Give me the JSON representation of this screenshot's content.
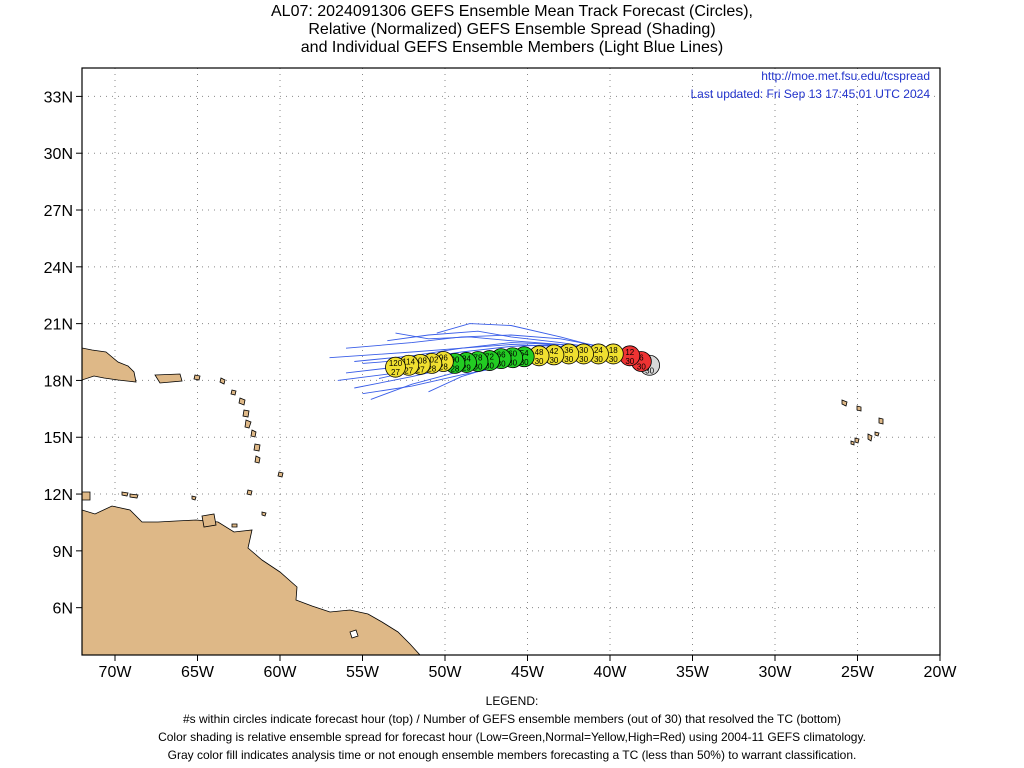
{
  "title": {
    "line1": "AL07: 2024091306 GEFS Ensemble Mean Track Forecast (Circles),",
    "line2": "Relative (Normalized) GEFS Ensemble Spread (Shading)",
    "line3": "and Individual GEFS Ensemble Members (Light Blue Lines)"
  },
  "header_links": {
    "url": "http://moe.met.fsu.edu/tcspread",
    "updated": "Last updated: Fri Sep 13 17:45:01 UTC 2024"
  },
  "axes": {
    "lon_range": [
      -72,
      -20
    ],
    "lat_range": [
      3.5,
      34.5
    ],
    "x_ticks": [
      {
        "lon": -70,
        "label": "70W"
      },
      {
        "lon": -65,
        "label": "65W"
      },
      {
        "lon": -60,
        "label": "60W"
      },
      {
        "lon": -55,
        "label": "55W"
      },
      {
        "lon": -50,
        "label": "50W"
      },
      {
        "lon": -45,
        "label": "45W"
      },
      {
        "lon": -40,
        "label": "40W"
      },
      {
        "lon": -35,
        "label": "35W"
      },
      {
        "lon": -30,
        "label": "30W"
      },
      {
        "lon": -25,
        "label": "25W"
      },
      {
        "lon": -20,
        "label": "20W"
      }
    ],
    "y_ticks": [
      {
        "lat": 6,
        "label": "6N"
      },
      {
        "lat": 9,
        "label": "9N"
      },
      {
        "lat": 12,
        "label": "12N"
      },
      {
        "lat": 15,
        "label": "15N"
      },
      {
        "lat": 18,
        "label": "18N"
      },
      {
        "lat": 21,
        "label": "21N"
      },
      {
        "lat": 24,
        "label": "24N"
      },
      {
        "lat": 27,
        "label": "27N"
      },
      {
        "lat": 30,
        "label": "30N"
      },
      {
        "lat": 33,
        "label": "33N"
      }
    ],
    "grid": true
  },
  "colors": {
    "land": "#deb887",
    "member_track": "#3a5ee8",
    "low_spread": "#22cc22",
    "normal_spread": "#f0e030",
    "high_spread": "#ee3333",
    "unclassified": "#d8d8d8",
    "link_text": "#2233cc"
  },
  "track": [
    {
      "hour": "0",
      "members": "30",
      "lon": -37.6,
      "lat": 18.8,
      "class": "gray"
    },
    {
      "hour": "6",
      "members": "30",
      "lon": -38.1,
      "lat": 19.0,
      "class": "red"
    },
    {
      "hour": "12",
      "members": "30",
      "lon": -38.8,
      "lat": 19.3,
      "class": "red"
    },
    {
      "hour": "18",
      "members": "30",
      "lon": -39.8,
      "lat": 19.4,
      "class": "yellow"
    },
    {
      "hour": "24",
      "members": "30",
      "lon": -40.7,
      "lat": 19.4,
      "class": "yellow"
    },
    {
      "hour": "30",
      "members": "30",
      "lon": -41.6,
      "lat": 19.4,
      "class": "yellow"
    },
    {
      "hour": "36",
      "members": "30",
      "lon": -42.5,
      "lat": 19.4,
      "class": "yellow"
    },
    {
      "hour": "42",
      "members": "30",
      "lon": -43.4,
      "lat": 19.35,
      "class": "yellow"
    },
    {
      "hour": "48",
      "members": "30",
      "lon": -44.3,
      "lat": 19.3,
      "class": "yellow"
    },
    {
      "hour": "54",
      "members": "30",
      "lon": -45.2,
      "lat": 19.25,
      "class": "green"
    },
    {
      "hour": "60",
      "members": "30",
      "lon": -45.9,
      "lat": 19.2,
      "class": "green"
    },
    {
      "hour": "66",
      "members": "30",
      "lon": -46.6,
      "lat": 19.15,
      "class": "green"
    },
    {
      "hour": "72",
      "members": "30",
      "lon": -47.3,
      "lat": 19.05,
      "class": "green"
    },
    {
      "hour": "78",
      "members": "30",
      "lon": -48.0,
      "lat": 19.0,
      "class": "green"
    },
    {
      "hour": "84",
      "members": "29",
      "lon": -48.7,
      "lat": 18.95,
      "class": "green"
    },
    {
      "hour": "90",
      "members": "28",
      "lon": -49.4,
      "lat": 18.9,
      "class": "green"
    },
    {
      "hour": "96",
      "members": "28",
      "lon": -50.1,
      "lat": 19.0,
      "class": "yellow"
    },
    {
      "hour": "102",
      "members": "28",
      "lon": -50.8,
      "lat": 18.9,
      "class": "yellow"
    },
    {
      "hour": "108",
      "members": "27",
      "lon": -51.5,
      "lat": 18.85,
      "class": "yellow"
    },
    {
      "hour": "114",
      "members": "27",
      "lon": -52.2,
      "lat": 18.8,
      "class": "yellow"
    },
    {
      "hour": "120",
      "members": "27",
      "lon": -53.0,
      "lat": 18.7,
      "class": "yellow"
    }
  ],
  "members": [
    [
      [
        -37.8,
        18.9
      ],
      [
        -40,
        19.6
      ],
      [
        -43,
        19.9
      ],
      [
        -46,
        20.0
      ],
      [
        -49,
        19.7
      ],
      [
        -52,
        19.3
      ],
      [
        -55.5,
        19.0
      ]
    ],
    [
      [
        -37.8,
        18.9
      ],
      [
        -40,
        19.7
      ],
      [
        -43,
        20.2
      ],
      [
        -46,
        20.4
      ],
      [
        -49,
        20.3
      ],
      [
        -52,
        20.0
      ],
      [
        -56.0,
        19.7
      ]
    ],
    [
      [
        -37.8,
        18.9
      ],
      [
        -40,
        19.6
      ],
      [
        -43,
        20.3
      ],
      [
        -46,
        20.9
      ],
      [
        -48.5,
        21.0
      ],
      [
        -50.5,
        20.5
      ]
    ],
    [
      [
        -37.8,
        18.9
      ],
      [
        -40,
        19.5
      ],
      [
        -43,
        19.7
      ],
      [
        -46,
        19.6
      ],
      [
        -49,
        19.3
      ],
      [
        -52,
        18.8
      ],
      [
        -56.0,
        18.4
      ]
    ],
    [
      [
        -37.8,
        18.9
      ],
      [
        -40,
        19.4
      ],
      [
        -43,
        19.5
      ],
      [
        -46,
        19.3
      ],
      [
        -49,
        18.8
      ],
      [
        -52,
        18.2
      ],
      [
        -55.5,
        17.6
      ]
    ],
    [
      [
        -37.8,
        18.9
      ],
      [
        -40,
        19.3
      ],
      [
        -43,
        19.3
      ],
      [
        -46,
        19.0
      ],
      [
        -49,
        18.5
      ],
      [
        -52,
        17.8
      ],
      [
        -54.5,
        17.0
      ]
    ],
    [
      [
        -37.8,
        18.9
      ],
      [
        -40,
        19.5
      ],
      [
        -43,
        19.8
      ],
      [
        -46,
        19.9
      ],
      [
        -49,
        19.7
      ],
      [
        -52,
        19.5
      ],
      [
        -57.0,
        19.2
      ]
    ],
    [
      [
        -37.8,
        18.9
      ],
      [
        -40,
        19.4
      ],
      [
        -43,
        19.4
      ],
      [
        -46,
        19.0
      ],
      [
        -49,
        18.2
      ],
      [
        -51,
        17.4
      ]
    ],
    [
      [
        -37.8,
        18.9
      ],
      [
        -40,
        19.6
      ],
      [
        -43,
        20.0
      ],
      [
        -46,
        20.3
      ],
      [
        -48,
        20.6
      ],
      [
        -51,
        20.4
      ],
      [
        -53.5,
        20.1
      ]
    ],
    [
      [
        -37.8,
        18.9
      ],
      [
        -40,
        19.5
      ],
      [
        -43,
        19.6
      ],
      [
        -46,
        19.4
      ],
      [
        -49,
        19.0
      ],
      [
        -52,
        18.5
      ],
      [
        -56.5,
        18.0
      ]
    ],
    [
      [
        -37.8,
        18.9
      ],
      [
        -40,
        19.3
      ],
      [
        -43,
        19.2
      ],
      [
        -46,
        18.8
      ],
      [
        -49,
        18.3
      ],
      [
        -52,
        17.7
      ],
      [
        -55.0,
        17.3
      ]
    ],
    [
      [
        -37.8,
        18.9
      ],
      [
        -40,
        19.6
      ],
      [
        -43,
        19.9
      ],
      [
        -46,
        19.8
      ],
      [
        -49,
        19.5
      ],
      [
        -52,
        19.1
      ],
      [
        -55.0,
        18.9
      ]
    ],
    [
      [
        -37.8,
        18.9
      ],
      [
        -40,
        19.5
      ],
      [
        -43,
        19.9
      ],
      [
        -46,
        20.1
      ],
      [
        -48.5,
        20.3
      ],
      [
        -51,
        20.2
      ],
      [
        -53.0,
        20.5
      ]
    ],
    [
      [
        -37.8,
        18.9
      ],
      [
        -40,
        19.4
      ],
      [
        -43,
        19.6
      ],
      [
        -46,
        19.5
      ],
      [
        -49,
        19.1
      ],
      [
        -51.5,
        18.6
      ],
      [
        -54.0,
        18.1
      ]
    ]
  ],
  "legend": {
    "heading": "LEGEND:",
    "line1": "#s within circles indicate forecast hour (top) / Number of GEFS ensemble members (out of 30) that resolved the TC (bottom)",
    "line2": "Color shading is relative ensemble spread for forecast hour (Low=Green,Normal=Yellow,High=Red) using 2004-11 GEFS climatology.",
    "line3": "Gray color fill indicates analysis time or not enough ensemble members forecasting a TC (less than 50%) to warrant classification."
  }
}
